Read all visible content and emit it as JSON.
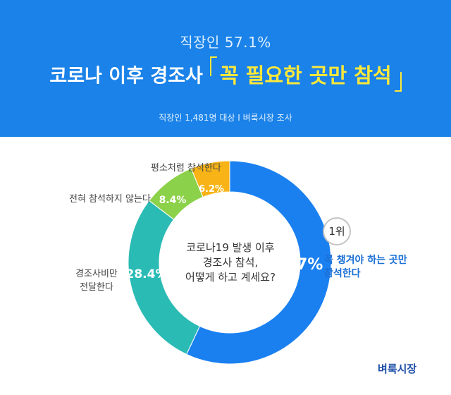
{
  "header": {
    "subtitle": "직장인 57.1%",
    "title_main": "코로나 이후 경조사",
    "title_highlight": "꼭 필요한 곳만 참석",
    "source": "직장인 1,481명 대상  I  벼룩시장 조사"
  },
  "chart_data": {
    "type": "pie",
    "subtype": "donut",
    "center_text": [
      "코로나19 발생 이후",
      "경조사 참석,",
      "어떻게 하고 계세요?"
    ],
    "slices": [
      {
        "label": "꼭 챙겨야 하는 곳만 참석한다",
        "value": 57,
        "value_label": "57%",
        "color": "#1a80f0"
      },
      {
        "label": "경조사비만 전달한다",
        "value": 28.4,
        "value_label": "28.4%",
        "color": "#2bbbb5"
      },
      {
        "label": "전혀 참석하지 않는다",
        "value": 8.4,
        "value_label": "8.4%",
        "color": "#8cd14a"
      },
      {
        "label": "평소처럼 참석한다",
        "value": 6.2,
        "value_label": "6.2%",
        "color": "#f8b417"
      }
    ]
  },
  "labels": {
    "top": "평소처럼 참석한다",
    "noattend": "전혀 참석하지 않는다",
    "msg_line1": "경조사비만",
    "msg_line2": "전달한다",
    "main_line1": "꼭 챙겨야 하는 곳만",
    "main_line2": "참석한다"
  },
  "rank": "1위",
  "brand": "벼룩시장"
}
